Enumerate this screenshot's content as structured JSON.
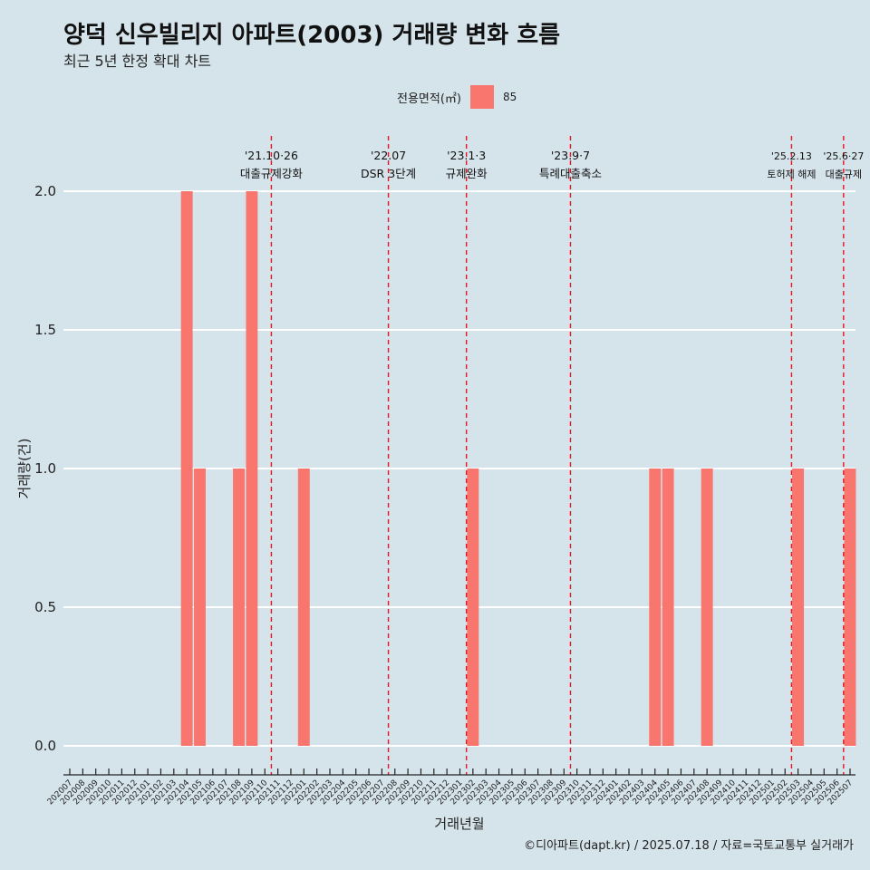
{
  "title": "양덕 신우빌리지 아파트(2003) 거래량 변화 흐름",
  "subtitle": "최근 5년 한정 확대 차트",
  "legend": {
    "title": "전용면적(㎡)",
    "entries": [
      {
        "label": "85",
        "color": "#f8766d"
      }
    ]
  },
  "caption": "©디아파트(dapt.kr) / 2025.07.18 / 자료=국토교통부 실거래가",
  "chart_data": {
    "type": "bar",
    "xlabel": "거래년월",
    "ylabel": "거래량(건)",
    "ylim": [
      0,
      2
    ],
    "yticks": [
      "0.0",
      "0.5",
      "1.0",
      "1.5",
      "2.0"
    ],
    "grid": "horizontal",
    "legend_position": "top",
    "bar_color": "#f8766d",
    "categories": [
      "202007",
      "202008",
      "202009",
      "202010",
      "202011",
      "202012",
      "202101",
      "202102",
      "202103",
      "202104",
      "202105",
      "202106",
      "202107",
      "202108",
      "202109",
      "202110",
      "202111",
      "202112",
      "202201",
      "202202",
      "202203",
      "202204",
      "202205",
      "202206",
      "202207",
      "202208",
      "202209",
      "202210",
      "202211",
      "202212",
      "202301",
      "202302",
      "202303",
      "202304",
      "202305",
      "202306",
      "202307",
      "202308",
      "202309",
      "202310",
      "202311",
      "202312",
      "202401",
      "202402",
      "202403",
      "202404",
      "202405",
      "202406",
      "202407",
      "202408",
      "202409",
      "202410",
      "202411",
      "202412",
      "202501",
      "202502",
      "202503",
      "202504",
      "202505",
      "202506",
      "202507"
    ],
    "series": [
      {
        "values": [
          0,
          0,
          0,
          0,
          0,
          0,
          0,
          0,
          0,
          2,
          1,
          0,
          0,
          1,
          2,
          0,
          0,
          0,
          1,
          0,
          0,
          0,
          0,
          0,
          0,
          0,
          0,
          0,
          0,
          0,
          0,
          1,
          0,
          0,
          0,
          0,
          0,
          0,
          0,
          0,
          0,
          0,
          0,
          0,
          0,
          1,
          1,
          0,
          0,
          1,
          0,
          0,
          0,
          0,
          0,
          0,
          1,
          0,
          0,
          0,
          1
        ]
      }
    ],
    "annotations": [
      {
        "x": "202110",
        "date": "'21.10·26",
        "text": "대출규제강화"
      },
      {
        "x": "202207",
        "date": "'22.07",
        "text": "DSR 3단계"
      },
      {
        "x": "202301",
        "date": "'23.1·3",
        "text": "규제완화"
      },
      {
        "x": "202309",
        "date": "'23.9·7",
        "text": "특례대출축소"
      },
      {
        "x": "202502",
        "date": "'25.2.13",
        "text": "토허제 해제"
      },
      {
        "x": "202506",
        "date": "'25.6·27",
        "text": "대출규제"
      }
    ]
  }
}
